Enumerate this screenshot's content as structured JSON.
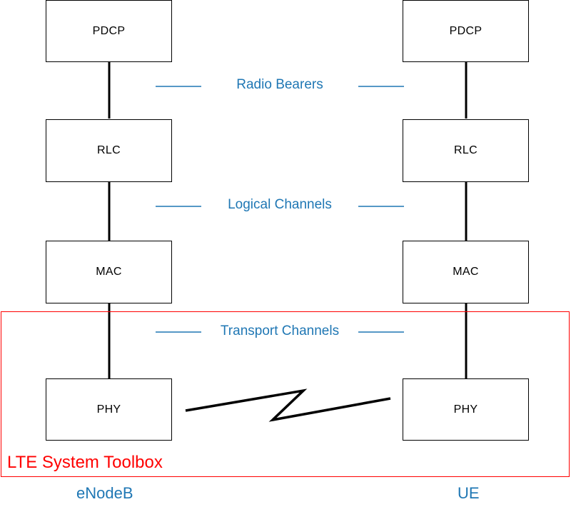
{
  "left_stack": {
    "layers": [
      "PDCP",
      "RLC",
      "MAC",
      "PHY"
    ],
    "label": "eNodeB"
  },
  "right_stack": {
    "layers": [
      "PDCP",
      "RLC",
      "MAC",
      "PHY"
    ],
    "label": "UE"
  },
  "channels": [
    "Radio Bearers",
    "Logical Channels",
    "Transport Channels"
  ],
  "region": {
    "label": "LTE System Toolbox"
  },
  "colors": {
    "channel_text": "#1f77b4",
    "region": "#ff0000",
    "lines": "#000000"
  }
}
